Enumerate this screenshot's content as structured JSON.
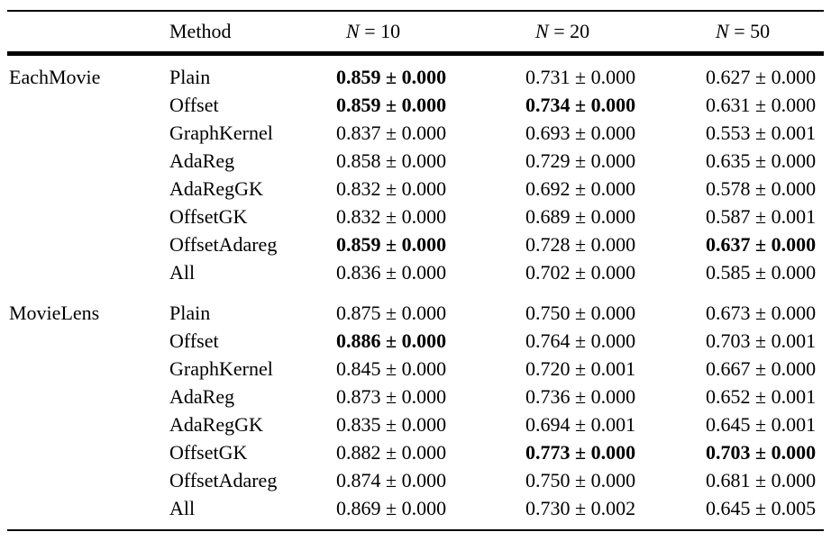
{
  "colors": {
    "text": "#000000",
    "background": "#ffffff",
    "rule": "#000000"
  },
  "table": {
    "header": {
      "method": "Method",
      "cols": [
        {
          "var": "N",
          "rest": " = 10"
        },
        {
          "var": "N",
          "rest": " = 20"
        },
        {
          "var": "N",
          "rest": " = 50"
        }
      ]
    },
    "sections": [
      {
        "dataset": "EachMovie",
        "rows": [
          {
            "method": "Plain",
            "values": [
              {
                "text": "0.859 ± 0.000",
                "bold": true
              },
              {
                "text": "0.731 ± 0.000",
                "bold": false
              },
              {
                "text": "0.627 ± 0.000",
                "bold": false
              }
            ]
          },
          {
            "method": "Offset",
            "values": [
              {
                "text": "0.859 ± 0.000",
                "bold": true
              },
              {
                "text": "0.734 ± 0.000",
                "bold": true
              },
              {
                "text": "0.631 ± 0.000",
                "bold": false
              }
            ]
          },
          {
            "method": "GraphKernel",
            "values": [
              {
                "text": "0.837 ± 0.000",
                "bold": false
              },
              {
                "text": "0.693 ± 0.000",
                "bold": false
              },
              {
                "text": "0.553 ± 0.001",
                "bold": false
              }
            ]
          },
          {
            "method": "AdaReg",
            "values": [
              {
                "text": "0.858 ± 0.000",
                "bold": false
              },
              {
                "text": "0.729 ± 0.000",
                "bold": false
              },
              {
                "text": "0.635 ± 0.000",
                "bold": false
              }
            ]
          },
          {
            "method": "AdaRegGK",
            "values": [
              {
                "text": "0.832 ± 0.000",
                "bold": false
              },
              {
                "text": "0.692 ± 0.000",
                "bold": false
              },
              {
                "text": "0.578 ± 0.000",
                "bold": false
              }
            ]
          },
          {
            "method": "OffsetGK",
            "values": [
              {
                "text": "0.832 ± 0.000",
                "bold": false
              },
              {
                "text": "0.689 ± 0.000",
                "bold": false
              },
              {
                "text": "0.587 ± 0.001",
                "bold": false
              }
            ]
          },
          {
            "method": "OffsetAdareg",
            "values": [
              {
                "text": "0.859 ± 0.000",
                "bold": true
              },
              {
                "text": "0.728 ± 0.000",
                "bold": false
              },
              {
                "text": "0.637 ± 0.000",
                "bold": true
              }
            ]
          },
          {
            "method": "All",
            "values": [
              {
                "text": "0.836 ± 0.000",
                "bold": false
              },
              {
                "text": "0.702 ± 0.000",
                "bold": false
              },
              {
                "text": "0.585 ± 0.000",
                "bold": false
              }
            ]
          }
        ]
      },
      {
        "dataset": "MovieLens",
        "rows": [
          {
            "method": "Plain",
            "values": [
              {
                "text": "0.875 ± 0.000",
                "bold": false
              },
              {
                "text": "0.750 ± 0.000",
                "bold": false
              },
              {
                "text": "0.673 ± 0.000",
                "bold": false
              }
            ]
          },
          {
            "method": "Offset",
            "values": [
              {
                "text": "0.886 ± 0.000",
                "bold": true
              },
              {
                "text": "0.764 ± 0.000",
                "bold": false
              },
              {
                "text": "0.703 ± 0.001",
                "bold": false
              }
            ]
          },
          {
            "method": "GraphKernel",
            "values": [
              {
                "text": "0.845 ± 0.000",
                "bold": false
              },
              {
                "text": "0.720 ± 0.001",
                "bold": false
              },
              {
                "text": "0.667 ± 0.000",
                "bold": false
              }
            ]
          },
          {
            "method": "AdaReg",
            "values": [
              {
                "text": "0.873 ± 0.000",
                "bold": false
              },
              {
                "text": "0.736 ± 0.000",
                "bold": false
              },
              {
                "text": "0.652 ± 0.001",
                "bold": false
              }
            ]
          },
          {
            "method": "AdaRegGK",
            "values": [
              {
                "text": "0.835 ± 0.000",
                "bold": false
              },
              {
                "text": "0.694 ± 0.001",
                "bold": false
              },
              {
                "text": "0.645 ± 0.001",
                "bold": false
              }
            ]
          },
          {
            "method": "OffsetGK",
            "values": [
              {
                "text": "0.882 ± 0.000",
                "bold": false
              },
              {
                "text": "0.773 ± 0.000",
                "bold": true
              },
              {
                "text": "0.703 ± 0.000",
                "bold": true
              }
            ]
          },
          {
            "method": "OffsetAdareg",
            "values": [
              {
                "text": "0.874 ± 0.000",
                "bold": false
              },
              {
                "text": "0.750 ± 0.000",
                "bold": false
              },
              {
                "text": "0.681 ± 0.000",
                "bold": false
              }
            ]
          },
          {
            "method": "All",
            "values": [
              {
                "text": "0.869 ± 0.000",
                "bold": false
              },
              {
                "text": "0.730 ± 0.002",
                "bold": false
              },
              {
                "text": "0.645 ± 0.005",
                "bold": false
              }
            ]
          }
        ]
      }
    ]
  }
}
